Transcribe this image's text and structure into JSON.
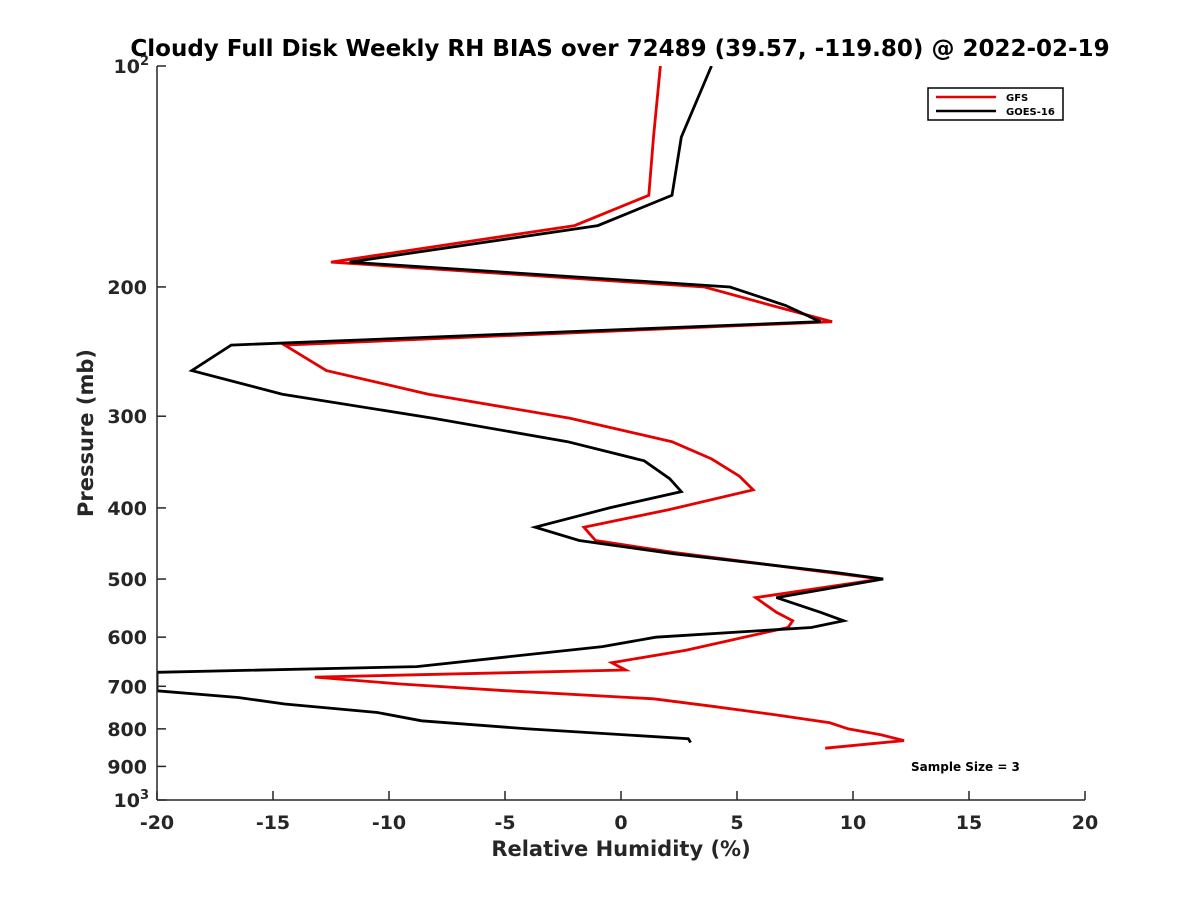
{
  "chart_data": {
    "type": "line",
    "title": "Cloudy Full Disk Weekly RH BIAS over 72489 (39.57, -119.80) @ 2022-02-19",
    "xlabel": "Relative Humidity (%)",
    "ylabel": "Pressure (mb)",
    "xlim": [
      -20,
      20
    ],
    "ylim": [
      100,
      1000
    ],
    "yscale": "log",
    "y_reversed": true,
    "xticks": [
      "-20",
      "-15",
      "-10",
      "-5",
      "0",
      "5",
      "10",
      "15",
      "20"
    ],
    "yticks": [
      {
        "value": 100,
        "label": "10",
        "sup": "2"
      },
      {
        "value": 200,
        "label": "200",
        "sup": ""
      },
      {
        "value": 300,
        "label": "300",
        "sup": ""
      },
      {
        "value": 400,
        "label": "400",
        "sup": ""
      },
      {
        "value": 500,
        "label": "500",
        "sup": ""
      },
      {
        "value": 600,
        "label": "600",
        "sup": ""
      },
      {
        "value": 700,
        "label": "700",
        "sup": ""
      },
      {
        "value": 800,
        "label": "800",
        "sup": ""
      },
      {
        "value": 900,
        "label": "900",
        "sup": ""
      },
      {
        "value": 1000,
        "label": "10",
        "sup": "3"
      }
    ],
    "grid": false,
    "legend_position": "top-right",
    "series": [
      {
        "name": "GFS",
        "color": "#e60000",
        "points": [
          [
            1.7,
            100
          ],
          [
            1.4,
            125
          ],
          [
            1.2,
            150
          ],
          [
            -2.0,
            165
          ],
          [
            -12.5,
            185
          ],
          [
            3.6,
            200
          ],
          [
            6.5,
            212
          ],
          [
            9.1,
            223
          ],
          [
            -14.5,
            240
          ],
          [
            -12.7,
            260
          ],
          [
            -8.3,
            280
          ],
          [
            -2.2,
            302
          ],
          [
            2.2,
            325
          ],
          [
            3.9,
            343
          ],
          [
            5.1,
            362
          ],
          [
            5.7,
            378
          ],
          [
            2.1,
            402
          ],
          [
            -1.6,
            425
          ],
          [
            -1.1,
            443
          ],
          [
            2.3,
            460
          ],
          [
            7.9,
            485
          ],
          [
            11.2,
            500
          ],
          [
            5.8,
            530
          ],
          [
            6.7,
            555
          ],
          [
            7.4,
            570
          ],
          [
            7.2,
            582
          ],
          [
            5.3,
            600
          ],
          [
            2.8,
            625
          ],
          [
            -0.4,
            650
          ],
          [
            0.2,
            665
          ],
          [
            -13.2,
            680
          ],
          [
            -9.5,
            695
          ],
          [
            -4.9,
            710
          ],
          [
            1.4,
            728
          ],
          [
            3.9,
            745
          ],
          [
            6.6,
            765
          ],
          [
            9.0,
            785
          ],
          [
            9.8,
            800
          ],
          [
            11.2,
            815
          ],
          [
            12.2,
            830
          ],
          [
            8.8,
            850
          ]
        ]
      },
      {
        "name": "GOES-16",
        "color": "#000000",
        "points": [
          [
            3.9,
            100
          ],
          [
            2.6,
            125
          ],
          [
            2.2,
            150
          ],
          [
            -1.0,
            165
          ],
          [
            -11.7,
            185
          ],
          [
            4.7,
            200
          ],
          [
            7.1,
            212
          ],
          [
            8.6,
            223
          ],
          [
            -16.8,
            240
          ],
          [
            -18.5,
            260
          ],
          [
            -14.6,
            280
          ],
          [
            -8.1,
            302
          ],
          [
            -2.3,
            325
          ],
          [
            1.0,
            345
          ],
          [
            2.1,
            365
          ],
          [
            2.6,
            380
          ],
          [
            -0.5,
            400
          ],
          [
            -3.7,
            425
          ],
          [
            -1.8,
            443
          ],
          [
            2.3,
            462
          ],
          [
            9.3,
            490
          ],
          [
            11.3,
            500
          ],
          [
            6.7,
            530
          ],
          [
            8.6,
            555
          ],
          [
            9.6,
            570
          ],
          [
            8.2,
            582
          ],
          [
            1.5,
            600
          ],
          [
            -0.8,
            618
          ],
          [
            -8.8,
            658
          ],
          [
            -20.0,
            670
          ],
          [
            -20.0,
            710
          ],
          [
            -16.5,
            725
          ],
          [
            -14.5,
            740
          ],
          [
            -10.5,
            760
          ],
          [
            -8.6,
            780
          ],
          [
            -4.0,
            800
          ],
          [
            2.9,
            825
          ],
          [
            3.0,
            835
          ]
        ]
      }
    ],
    "annotations": [
      "Sample Size = 3"
    ]
  }
}
